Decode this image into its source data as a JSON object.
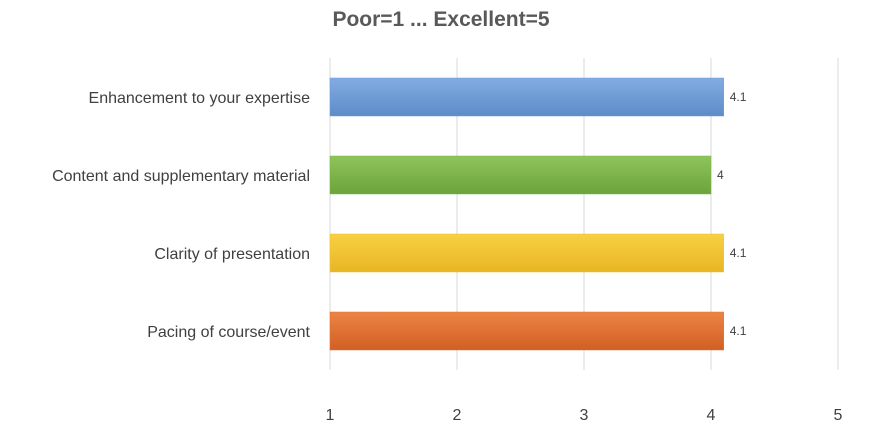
{
  "chart_data": {
    "type": "bar",
    "orientation": "horizontal",
    "title": "Poor=1 ... Excellent=5",
    "xlabel": "",
    "ylabel": "",
    "categories": [
      "Enhancement to your expertise",
      "Content and supplementary material",
      "Clarity of presentation",
      "Pacing of course/event"
    ],
    "values": [
      4.1,
      4,
      4.1,
      4.1
    ],
    "data_labels": [
      "4.1",
      "4",
      "4.1",
      "4.1"
    ],
    "colors": [
      "#6f9bd4",
      "#7ab648",
      "#f1c232",
      "#e07032"
    ],
    "xlim": [
      1,
      5
    ],
    "xticks": [
      "1",
      "2",
      "3",
      "4",
      "5"
    ],
    "grid": "vertical",
    "legend": "none"
  }
}
